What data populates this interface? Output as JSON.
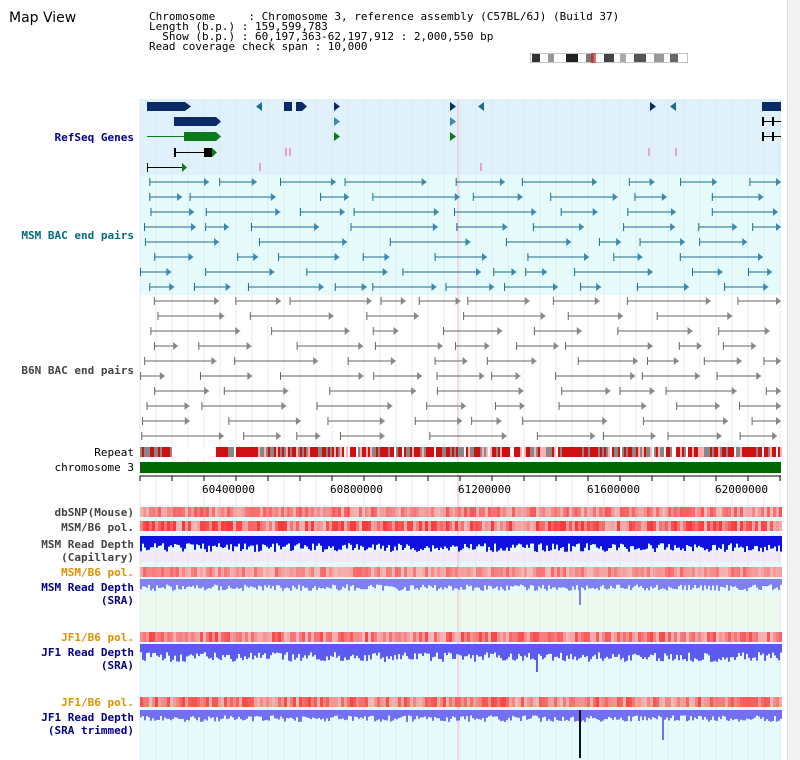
{
  "title": "Map View",
  "info": {
    "chromosome": "Chromosome     : Chromosome 3, reference assembly (C57BL/6J) (Build 37)",
    "length": "Length (b.p.) : 159,599,783",
    "show": "  Show (b.p.) : 60,197,363-62,197,912 : 2,000,550 bp",
    "coverage": "Read coverage check span : 10,000"
  },
  "tracks": {
    "refseq": "RefSeq Genes",
    "msm_bac": "MSM BAC end pairs",
    "b6n_bac": "B6N BAC end pairs",
    "repeat": "Repeat",
    "chromosome": "chromosome 3",
    "dbsnp": "dbSNP(Mouse)",
    "msm_b6_pol_1": "MSM/B6 pol.",
    "msm_rd_cap": "MSM Read Depth\n(Capillary)",
    "msm_b6_pol_2": "MSM/B6 pol.",
    "msm_rd_sra": "MSM Read Depth\n(SRA)",
    "jf1_b6_pol_1": "JF1/B6 pol.",
    "jf1_rd_sra": "JF1 Read Depth\n(SRA)",
    "jf1_b6_pol_2": "JF1/B6 pol.",
    "jf1_rd_sra_trim": "JF1 Read Depth\n(SRA trimmed)"
  },
  "axis": {
    "ticks": [
      "60400000",
      "60800000",
      "61200000",
      "61600000",
      "62000000"
    ]
  },
  "colors": {
    "refseq_bg": "#dff1fb",
    "msm_bg": "#e6fbfb",
    "gene_navy": "#0a2a66",
    "gene_green": "#0a7a1a",
    "bac_teal": "#1a6e8a",
    "b6n_gray": "#666666",
    "chrom_green": "#006600",
    "label_navy": "#00008b",
    "label_teal": "#006c80",
    "label_orange": "#e09000",
    "read_blue": "#5b5bf0",
    "pol_red": "#f06060"
  }
}
